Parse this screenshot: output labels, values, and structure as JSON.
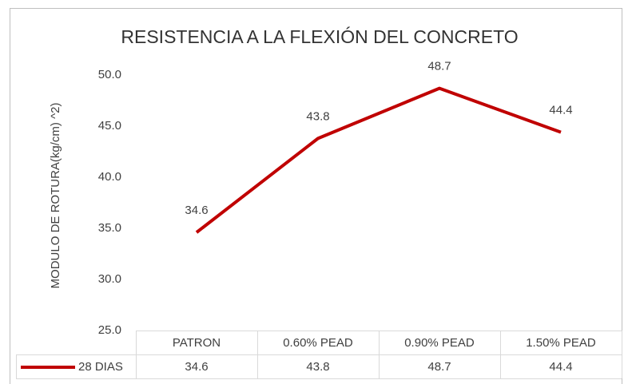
{
  "chart_data": {
    "type": "line",
    "title": "RESISTENCIA A LA FLEXIÓN DEL CONCRETO",
    "y_label": "MODULO DE ROTURA(kg/cm) ^2)",
    "categories": [
      "PATRON",
      "0.60% PEAD",
      "0.90% PEAD",
      "1.50% PEAD"
    ],
    "series": [
      {
        "name": "28 DIAS",
        "color": "#c00000",
        "values": [
          34.6,
          43.8,
          48.7,
          44.4
        ]
      }
    ],
    "ylim": [
      25,
      50
    ],
    "yticks": [
      {
        "value": 25,
        "label": "25.0"
      },
      {
        "value": 30,
        "label": "30.0"
      },
      {
        "value": 35,
        "label": "35.0"
      },
      {
        "value": 40,
        "label": "40.0"
      },
      {
        "value": 45,
        "label": "45.0"
      },
      {
        "value": 50,
        "label": "50.0"
      }
    ],
    "grid": false,
    "data_table": true
  }
}
